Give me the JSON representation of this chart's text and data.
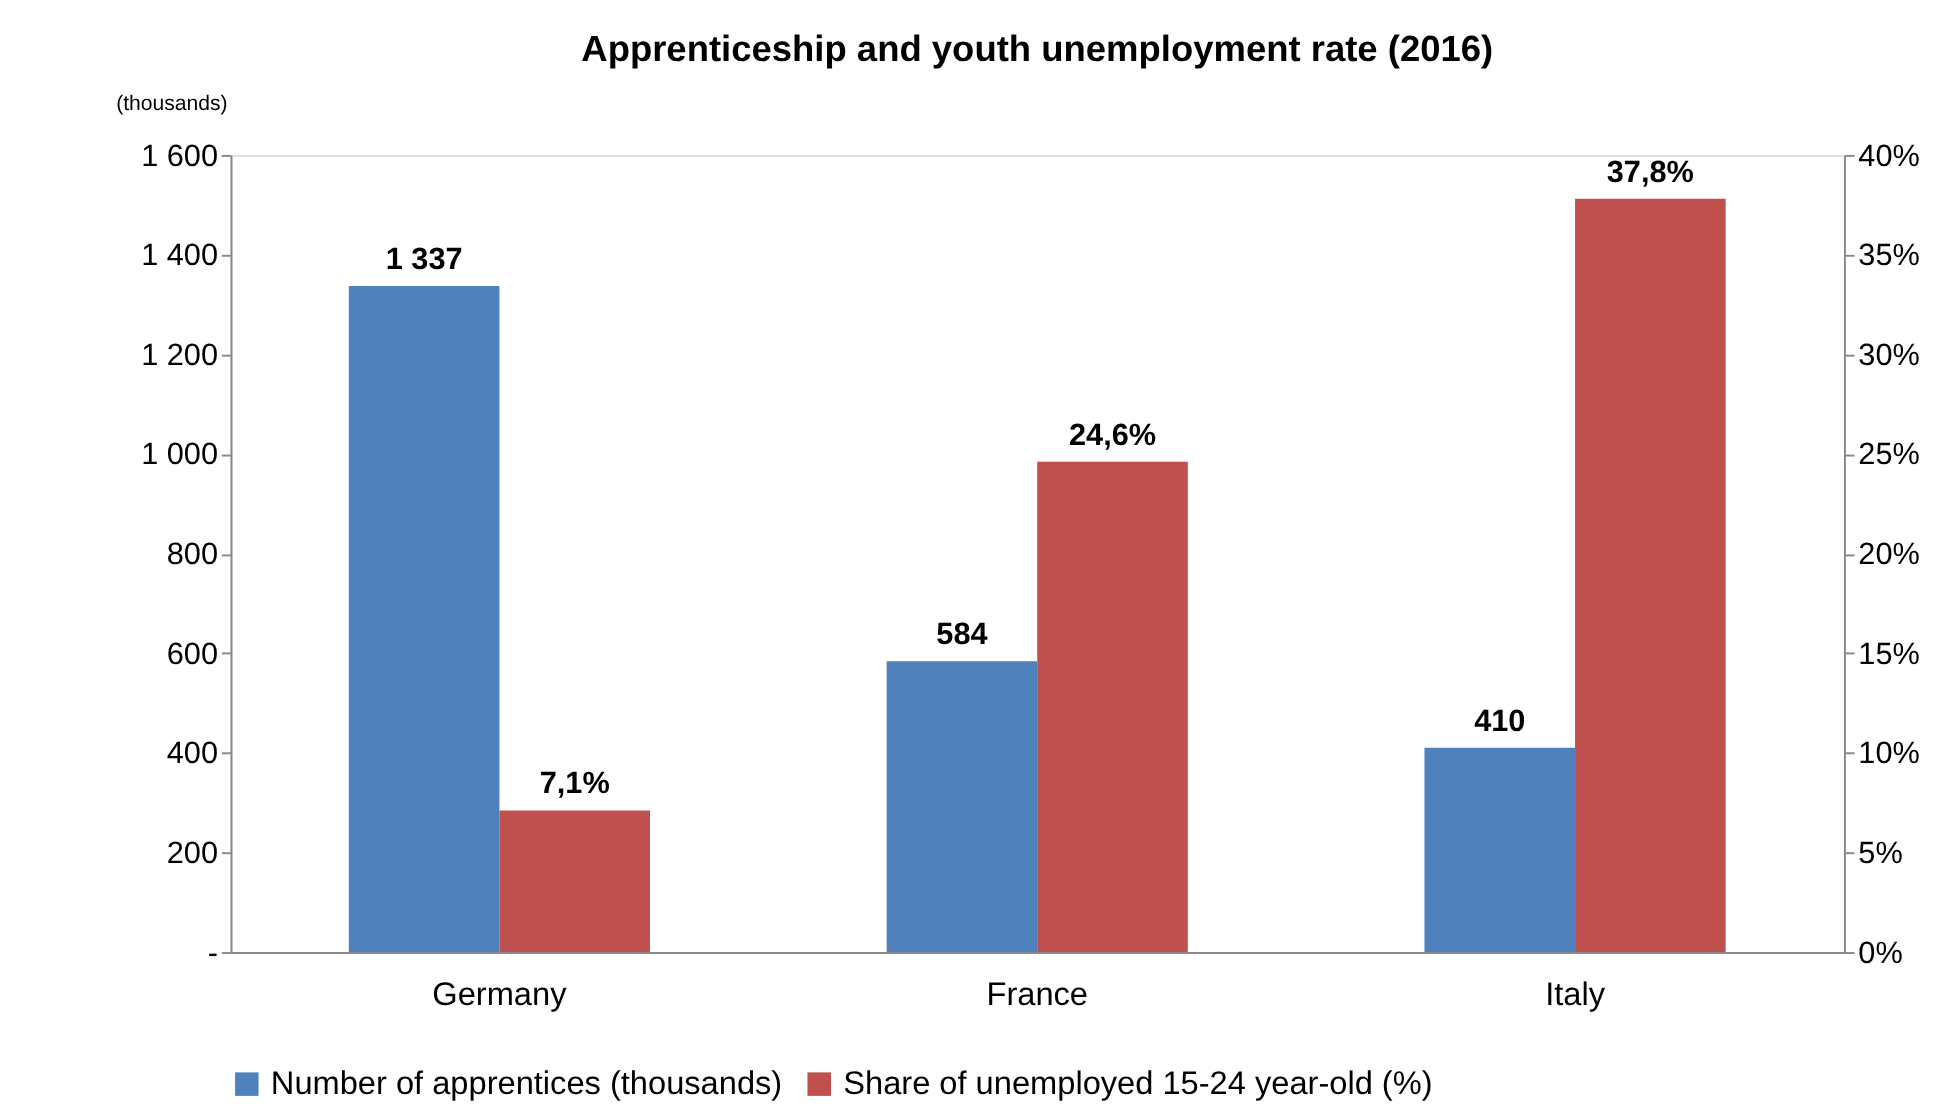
{
  "chart_data": {
    "type": "bar",
    "title": "Apprenticeship and youth unemployment rate (2016)",
    "ylabel": "(thousands)",
    "categories": [
      "Germany",
      "France",
      "Italy"
    ],
    "series": [
      {
        "name": "Number of apprentices (thousands)",
        "color": "#4f81bd",
        "values": [
          1337,
          584,
          410
        ],
        "value_labels": [
          "1 337",
          "584",
          "410"
        ]
      },
      {
        "name": "Share of unemployed 15-24 year-old (%)",
        "color": "#c0504d",
        "values": [
          7.1,
          24.6,
          37.8
        ],
        "value_labels": [
          "7,1%",
          "24,6%",
          "37,8%"
        ],
        "axis": "y2"
      }
    ],
    "ylim": [
      0,
      1600
    ],
    "yticks": [
      {
        "value": 0,
        "label": "-"
      },
      {
        "value": 200,
        "label": "200"
      },
      {
        "value": 400,
        "label": "400"
      },
      {
        "value": 600,
        "label": "600"
      },
      {
        "value": 800,
        "label": "800"
      },
      {
        "value": 1000,
        "label": "1 000"
      },
      {
        "value": 1200,
        "label": "1 200"
      },
      {
        "value": 1400,
        "label": "1 400"
      },
      {
        "value": 1600,
        "label": "1 600"
      }
    ],
    "y2lim": [
      0,
      40
    ],
    "y2ticks": [
      {
        "value": 0,
        "label": "0%"
      },
      {
        "value": 5,
        "label": "5%"
      },
      {
        "value": 10,
        "label": "10%"
      },
      {
        "value": 15,
        "label": "15%"
      },
      {
        "value": 20,
        "label": "20%"
      },
      {
        "value": 25,
        "label": "25%"
      },
      {
        "value": 30,
        "label": "30%"
      },
      {
        "value": 35,
        "label": "35%"
      },
      {
        "value": 40,
        "label": "40%"
      }
    ],
    "legend": "bottom",
    "grid": false
  }
}
